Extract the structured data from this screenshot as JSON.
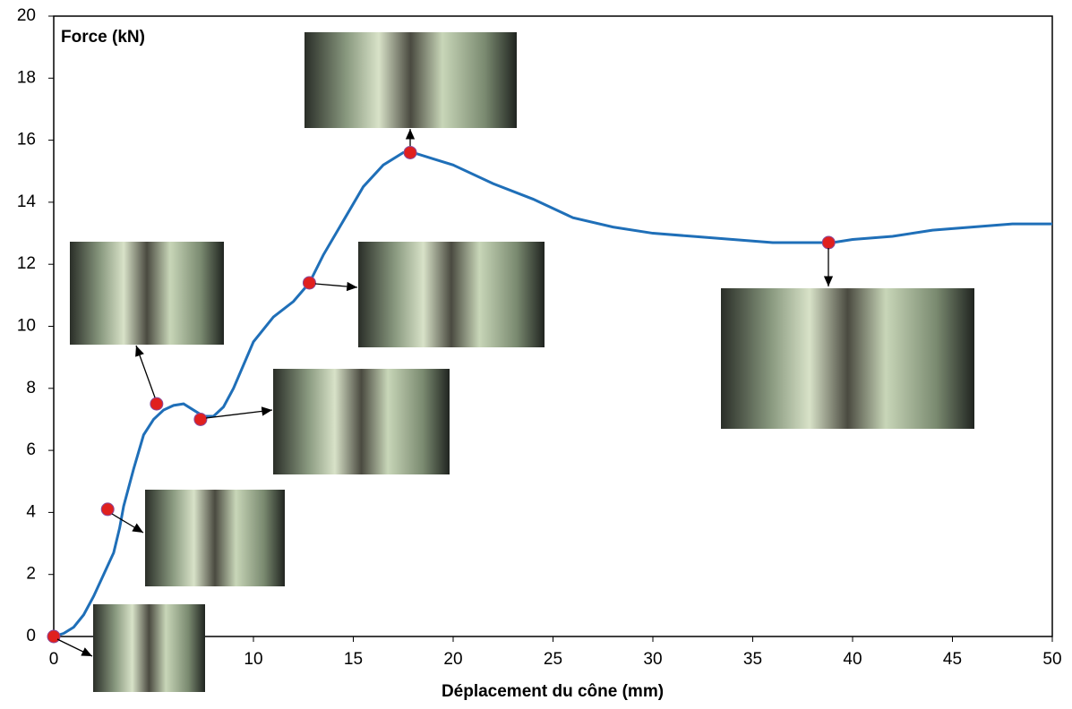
{
  "chart_data": {
    "type": "line",
    "y_label": "Force (kN)",
    "x_label": "Déplacement du cône (mm)",
    "x": [
      0,
      0.5,
      1,
      1.5,
      2,
      2.5,
      3,
      3.3,
      3.5,
      4,
      4.5,
      5,
      5.5,
      6,
      6.5,
      7,
      7.5,
      8,
      8.5,
      9,
      10,
      11,
      12,
      12.8,
      13.5,
      14.5,
      15.5,
      16.5,
      17.5,
      18,
      19,
      20,
      22,
      24,
      26,
      28,
      30,
      32,
      34,
      36,
      38,
      39,
      40,
      42,
      44,
      46,
      48,
      50
    ],
    "values": [
      0,
      0.1,
      0.3,
      0.7,
      1.3,
      2,
      2.7,
      3.5,
      4.2,
      5.4,
      6.5,
      7.0,
      7.3,
      7.45,
      7.5,
      7.3,
      7.1,
      7.1,
      7.4,
      8.0,
      9.5,
      10.3,
      10.8,
      11.4,
      12.3,
      13.4,
      14.5,
      15.2,
      15.6,
      15.6,
      15.4,
      15.2,
      14.6,
      14.1,
      13.5,
      13.2,
      13.0,
      12.9,
      12.8,
      12.7,
      12.7,
      12.7,
      12.8,
      12.9,
      13.1,
      13.2,
      13.3,
      13.3
    ],
    "color": "#1f6fb8",
    "highlights": {
      "x": [
        0,
        2.7,
        5.15,
        7.35,
        12.8,
        17.85,
        38.8
      ],
      "values": [
        0,
        4.1,
        7.5,
        7.0,
        11.4,
        15.6,
        12.7
      ],
      "color": "#e0201e"
    },
    "xlim": [
      0,
      50
    ],
    "xticks": [
      0,
      5,
      10,
      15,
      20,
      25,
      30,
      35,
      40,
      45,
      50
    ],
    "ylim": [
      0,
      20
    ],
    "yticks": [
      0,
      2,
      4,
      6,
      8,
      10,
      12,
      14,
      16,
      18,
      20
    ]
  }
}
